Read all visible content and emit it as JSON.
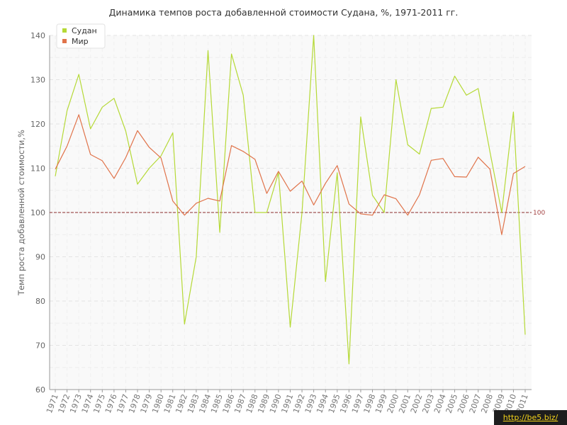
{
  "chart_data": {
    "type": "line",
    "title": "Динамика темпов роста добавленной стоимости Судана, %, 1971-2011 гг.",
    "xlabel": "",
    "ylabel": "Темп роста добавленной стоимости,%",
    "ylim": [
      60,
      140
    ],
    "yticks": [
      60,
      70,
      80,
      90,
      100,
      110,
      120,
      130,
      140
    ],
    "grid": true,
    "legend_placement": "top-left",
    "categories": [
      "1971",
      "1972",
      "1973",
      "1974",
      "1975",
      "1976",
      "1977",
      "1978",
      "1979",
      "1980",
      "1981",
      "1982",
      "1983",
      "1984",
      "1985",
      "1986",
      "1987",
      "1988",
      "1989",
      "1990",
      "1991",
      "1992",
      "1993",
      "1994",
      "1995",
      "1996",
      "1997",
      "1998",
      "1999",
      "2000",
      "2001",
      "2002",
      "2003",
      "2004",
      "2005",
      "2006",
      "2007",
      "2008",
      "2009",
      "2010",
      "2011"
    ],
    "series": [
      {
        "name": "Судан",
        "color": "#b5d936",
        "values": [
          108.2,
          123,
          131.2,
          118.9,
          123.8,
          125.8,
          118.4,
          106.4,
          110.0,
          112.8,
          118.0,
          74.8,
          90.0,
          136.6,
          95.5,
          135.8,
          126.5,
          100.0,
          100.0,
          109.0,
          74.1,
          100.0,
          140.0,
          84.4,
          109.0,
          65.8,
          121.6,
          103.9,
          100.0,
          130.0,
          115.3,
          113.2,
          123.5,
          123.8,
          130.8,
          126.5,
          128.0,
          113.7,
          100.0,
          122.7,
          72.4
        ]
      },
      {
        "name": "Мир",
        "color": "#e0734a",
        "values": [
          109.8,
          115.0,
          122.1,
          113.1,
          111.7,
          107.7,
          112.4,
          118.5,
          114.7,
          112.3,
          102.6,
          99.4,
          102.1,
          103.2,
          102.6,
          115.1,
          113.8,
          112.0,
          104.3,
          109.3,
          104.8,
          107.1,
          101.7,
          106.6,
          110.6,
          101.9,
          99.7,
          99.4,
          104.0,
          103.1,
          99.4,
          104.0,
          111.8,
          112.2,
          108.1,
          108.0,
          112.5,
          109.8,
          95.0,
          108.8,
          110.4
        ]
      }
    ],
    "reference_line": {
      "value": 100,
      "label": "100",
      "color": "#8b2a2a"
    }
  },
  "watermark": "http://be5.biz/"
}
